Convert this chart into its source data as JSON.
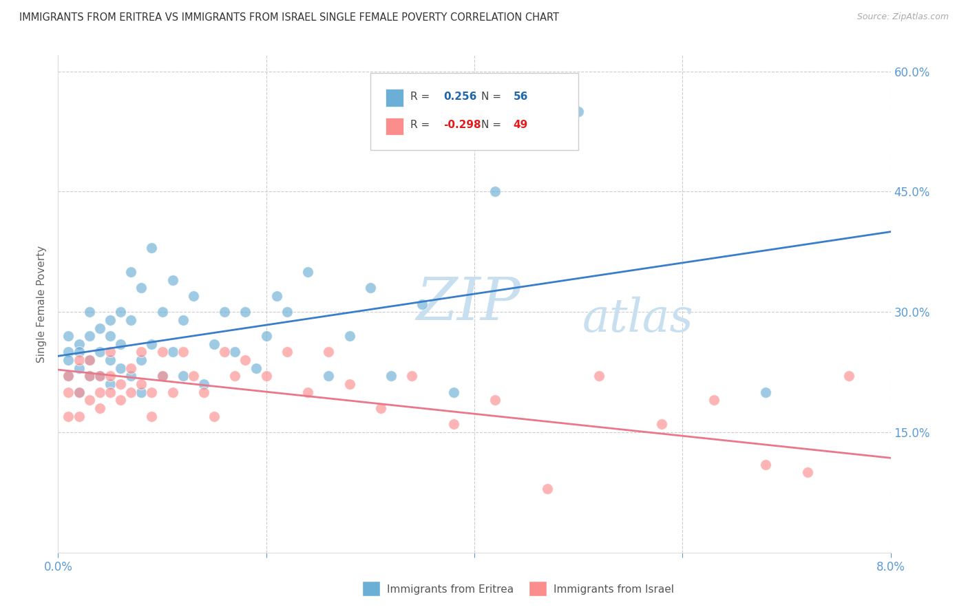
{
  "title": "IMMIGRANTS FROM ERITREA VS IMMIGRANTS FROM ISRAEL SINGLE FEMALE POVERTY CORRELATION CHART",
  "source": "Source: ZipAtlas.com",
  "ylabel": "Single Female Poverty",
  "x_min": 0.0,
  "x_max": 0.08,
  "y_min": 0.0,
  "y_max": 0.62,
  "x_ticks": [
    0.0,
    0.02,
    0.04,
    0.06,
    0.08
  ],
  "x_tick_labels": [
    "0.0%",
    "",
    "",
    "",
    "8.0%"
  ],
  "y_ticks": [
    0.15,
    0.3,
    0.45,
    0.6
  ],
  "y_tick_labels": [
    "15.0%",
    "30.0%",
    "45.0%",
    "60.0%"
  ],
  "eritrea_color": "#6baed6",
  "israel_color": "#fc8d8d",
  "eritrea_R": 0.256,
  "eritrea_N": 56,
  "israel_R": -0.298,
  "israel_N": 49,
  "legend_label_eritrea": "Immigrants from Eritrea",
  "legend_label_israel": "Immigrants from Israel",
  "watermark_zip": "ZIP",
  "watermark_atlas": "atlas",
  "eritrea_x": [
    0.001,
    0.001,
    0.001,
    0.001,
    0.002,
    0.002,
    0.002,
    0.002,
    0.003,
    0.003,
    0.003,
    0.003,
    0.004,
    0.004,
    0.004,
    0.005,
    0.005,
    0.005,
    0.005,
    0.006,
    0.006,
    0.006,
    0.007,
    0.007,
    0.007,
    0.008,
    0.008,
    0.008,
    0.009,
    0.009,
    0.01,
    0.01,
    0.011,
    0.011,
    0.012,
    0.012,
    0.013,
    0.014,
    0.015,
    0.016,
    0.017,
    0.018,
    0.019,
    0.02,
    0.021,
    0.022,
    0.024,
    0.026,
    0.028,
    0.03,
    0.032,
    0.035,
    0.038,
    0.042,
    0.05,
    0.068
  ],
  "eritrea_y": [
    0.25,
    0.27,
    0.22,
    0.24,
    0.26,
    0.23,
    0.25,
    0.2,
    0.24,
    0.27,
    0.22,
    0.3,
    0.25,
    0.22,
    0.28,
    0.24,
    0.27,
    0.21,
    0.29,
    0.23,
    0.26,
    0.3,
    0.22,
    0.35,
    0.29,
    0.2,
    0.24,
    0.33,
    0.26,
    0.38,
    0.3,
    0.22,
    0.34,
    0.25,
    0.22,
    0.29,
    0.32,
    0.21,
    0.26,
    0.3,
    0.25,
    0.3,
    0.23,
    0.27,
    0.32,
    0.3,
    0.35,
    0.22,
    0.27,
    0.33,
    0.22,
    0.31,
    0.2,
    0.45,
    0.55,
    0.2
  ],
  "israel_x": [
    0.001,
    0.001,
    0.001,
    0.002,
    0.002,
    0.002,
    0.003,
    0.003,
    0.003,
    0.004,
    0.004,
    0.004,
    0.005,
    0.005,
    0.005,
    0.006,
    0.006,
    0.007,
    0.007,
    0.008,
    0.008,
    0.009,
    0.009,
    0.01,
    0.01,
    0.011,
    0.012,
    0.013,
    0.014,
    0.015,
    0.016,
    0.017,
    0.018,
    0.02,
    0.022,
    0.024,
    0.026,
    0.028,
    0.031,
    0.034,
    0.038,
    0.042,
    0.047,
    0.052,
    0.058,
    0.063,
    0.068,
    0.072,
    0.076
  ],
  "israel_y": [
    0.22,
    0.2,
    0.17,
    0.24,
    0.2,
    0.17,
    0.19,
    0.22,
    0.24,
    0.2,
    0.22,
    0.18,
    0.22,
    0.2,
    0.25,
    0.21,
    0.19,
    0.23,
    0.2,
    0.21,
    0.25,
    0.2,
    0.17,
    0.22,
    0.25,
    0.2,
    0.25,
    0.22,
    0.2,
    0.17,
    0.25,
    0.22,
    0.24,
    0.22,
    0.25,
    0.2,
    0.25,
    0.21,
    0.18,
    0.22,
    0.16,
    0.19,
    0.08,
    0.22,
    0.16,
    0.19,
    0.11,
    0.1,
    0.22
  ],
  "eritrea_line_x": [
    0.0,
    0.08
  ],
  "eritrea_line_y": [
    0.245,
    0.4
  ],
  "israel_line_x": [
    0.0,
    0.08
  ],
  "israel_line_y": [
    0.228,
    0.118
  ],
  "background_color": "#ffffff",
  "grid_color": "#cccccc",
  "title_color": "#333333",
  "tick_color": "#5b9bd5",
  "legend_R_eritrea_color": "#2166ac",
  "legend_R_israel_color": "#e31a1c",
  "legend_border_color": "#cccccc",
  "watermark_color": "#c8dff0"
}
